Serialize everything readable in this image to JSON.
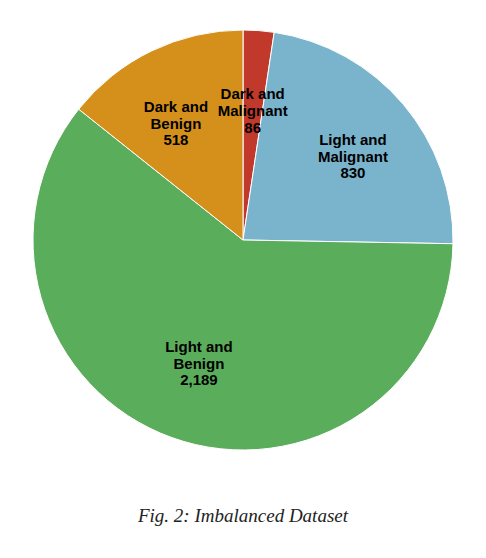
{
  "chart_data": {
    "type": "pie",
    "title": "Fig. 2: Imbalanced Dataset",
    "categories": [
      "Dark and\nMalignant",
      "Light and\nMalignant",
      "Light and\nBenign",
      "Dark and\nBenign"
    ],
    "values": [
      86,
      830,
      2189,
      518
    ],
    "value_labels": [
      "86",
      "830",
      "2,189",
      "518"
    ],
    "data_labels": true,
    "colors": [
      "#c0392b",
      "#7ab3cc",
      "#5aad5a",
      "#d4901a"
    ]
  }
}
